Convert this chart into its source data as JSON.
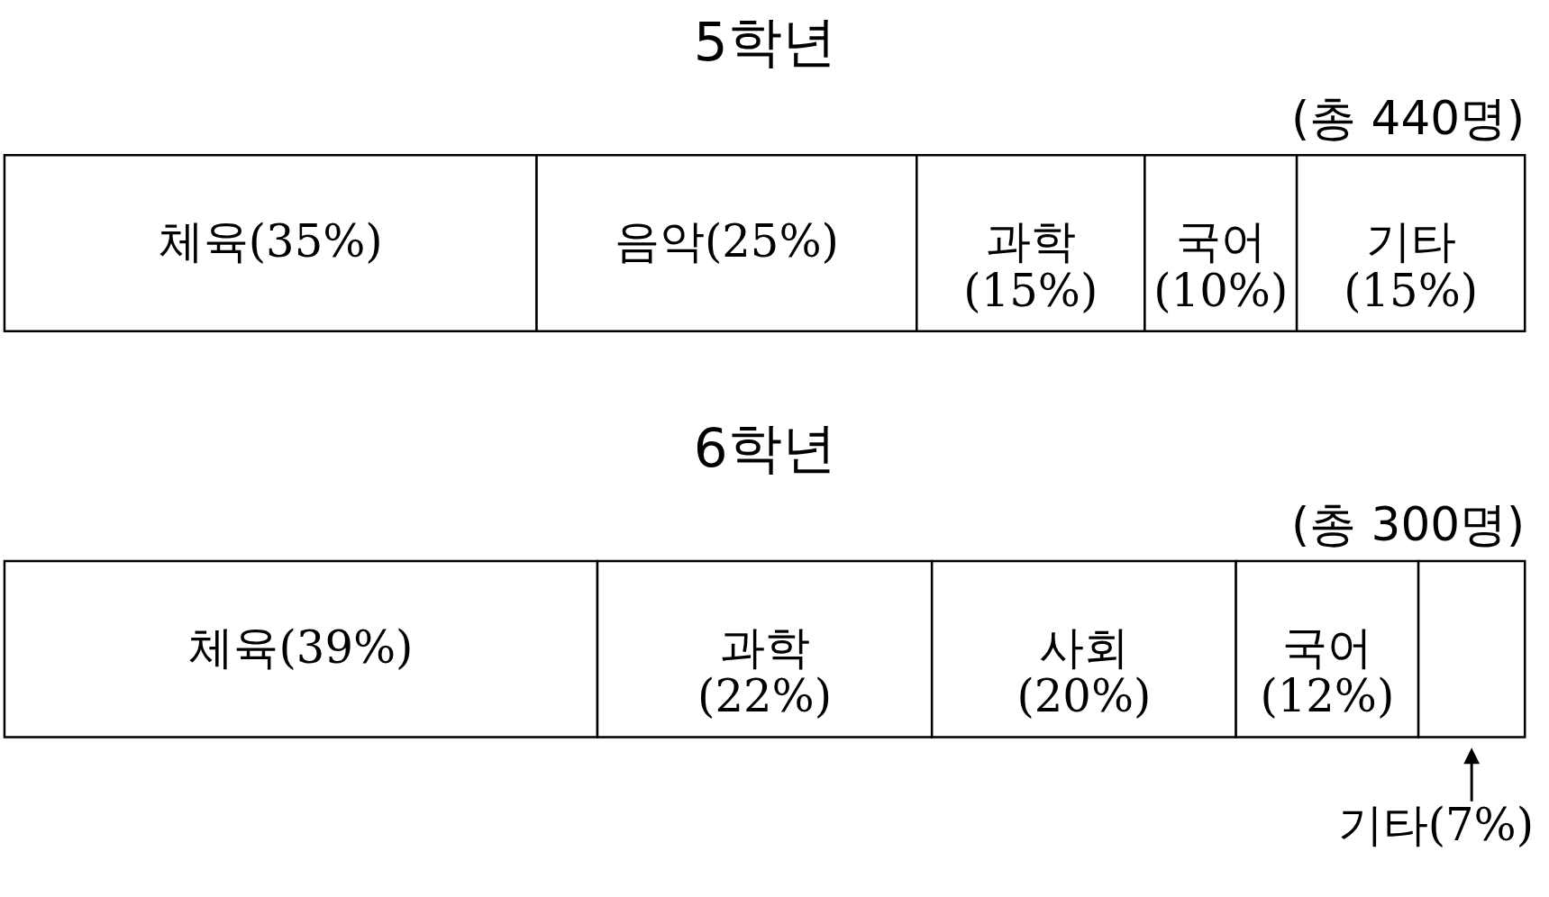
{
  "chart_data": [
    {
      "type": "bar",
      "orientation": "horizontal",
      "stacked": true,
      "title": "5학년",
      "subtitle": "(총 440명)",
      "categories": [
        null
      ],
      "series": [
        {
          "name": "체육",
          "color": "#ffffff",
          "values": [
            35
          ],
          "value_labels": [
            "(35%)"
          ]
        },
        {
          "name": "음악",
          "color": "#ffffff",
          "values": [
            25
          ],
          "value_labels": [
            "(25%)"
          ]
        },
        {
          "name": "과학",
          "color": "#ffffff",
          "values": [
            15
          ],
          "value_labels": [
            "(15%)"
          ]
        },
        {
          "name": "국어",
          "color": "#ffffff",
          "values": [
            10
          ],
          "value_labels": [
            "(10%)"
          ]
        },
        {
          "name": "기타",
          "color": "#ffffff",
          "values": [
            15
          ],
          "value_labels": [
            "(15%)"
          ]
        }
      ]
    },
    {
      "type": "bar",
      "orientation": "horizontal",
      "stacked": true,
      "title": "6학년",
      "subtitle": "(총 300명)",
      "categories": [
        null
      ],
      "series": [
        {
          "name": "체육",
          "color": "#ffffff",
          "values": [
            39
          ],
          "value_labels": [
            "(39%)"
          ]
        },
        {
          "name": "과학",
          "color": "#ffffff",
          "values": [
            22
          ],
          "value_labels": [
            "(22%)"
          ]
        },
        {
          "name": "사회",
          "color": "#ffffff",
          "values": [
            20
          ],
          "value_labels": [
            "(20%)"
          ]
        },
        {
          "name": "국어",
          "color": "#ffffff",
          "values": [
            12
          ],
          "value_labels": [
            "(12%)"
          ]
        },
        {
          "name": "기타",
          "color": "#ffffff",
          "values": [
            7
          ],
          "value_labels": [
            "(7%)"
          ]
        }
      ]
    }
  ]
}
